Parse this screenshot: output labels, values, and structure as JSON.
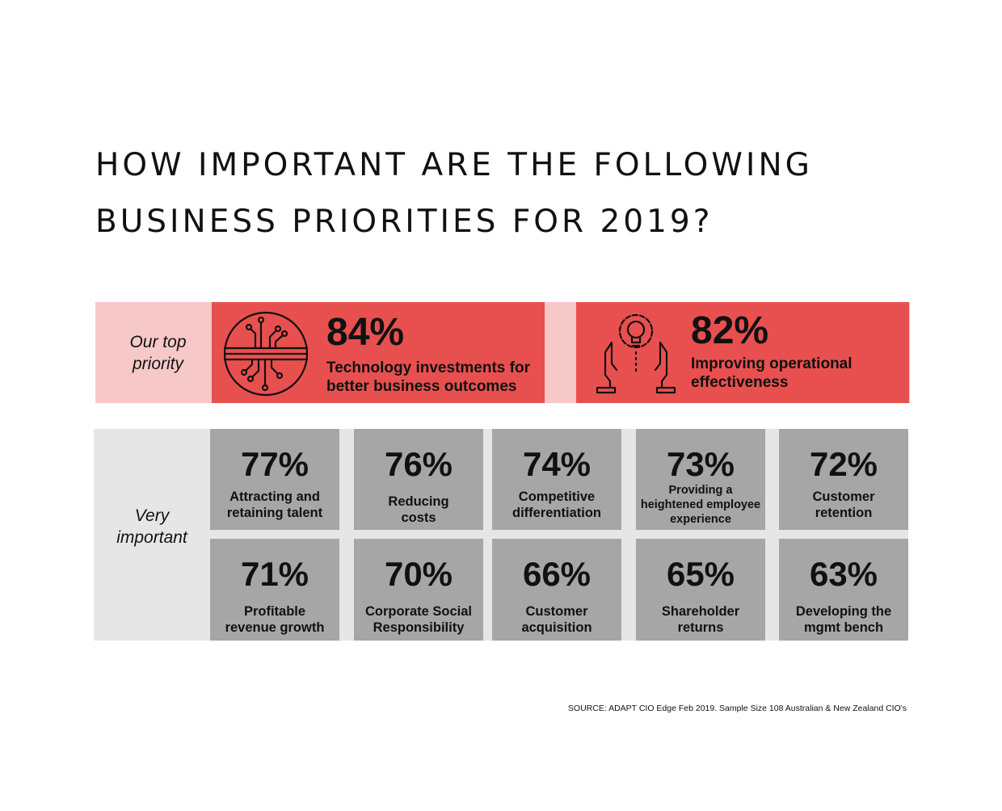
{
  "title": {
    "line1": "HOW IMPORTANT ARE THE FOLLOWING",
    "line2": "BUSINESS PRIORITIES FOR 2019?"
  },
  "top_priority": {
    "label_line1": "Our top",
    "label_line2": "priority",
    "items": [
      {
        "pct": "84%",
        "label_line1": "Technology investments for",
        "label_line2": "better business outcomes",
        "icon": "circuit-icon"
      },
      {
        "pct": "82%",
        "label_line1": "Improving operational",
        "label_line2": "effectiveness",
        "icon": "hands-lightbulb-gear-icon"
      }
    ]
  },
  "very_important": {
    "label_line1": "Very",
    "label_line2": "important",
    "items": [
      {
        "pct": "77%",
        "lines": [
          "Attracting and",
          "retaining talent"
        ]
      },
      {
        "pct": "76%",
        "lines": [
          "Reducing",
          "costs"
        ]
      },
      {
        "pct": "74%",
        "lines": [
          "Competitive",
          "differentiation"
        ]
      },
      {
        "pct": "73%",
        "lines": [
          "Providing a",
          "heightened employee",
          "experience"
        ]
      },
      {
        "pct": "72%",
        "lines": [
          "Customer",
          "retention"
        ]
      },
      {
        "pct": "71%",
        "lines": [
          "Profitable",
          "revenue growth"
        ]
      },
      {
        "pct": "70%",
        "lines": [
          "Corporate Social",
          "Responsibility"
        ]
      },
      {
        "pct": "66%",
        "lines": [
          "Customer",
          "acquisition"
        ]
      },
      {
        "pct": "65%",
        "lines": [
          "Shareholder",
          "returns"
        ]
      },
      {
        "pct": "63%",
        "lines": [
          "Developing the",
          "mgmt bench"
        ]
      }
    ]
  },
  "source": "SOURCE: ADAPT CIO Edge Feb 2019. Sample Size 108 Australian & New Zealand CIO's",
  "colors": {
    "top_band": "#f7c8c8",
    "top_card": "#e8504f",
    "vi_band": "#e6e6e6",
    "vi_cell": "#a6a6a6"
  },
  "chart_data": {
    "type": "table",
    "title": "HOW IMPORTANT ARE THE FOLLOWING BUSINESS PRIORITIES FOR 2019?",
    "categories": [
      "Technology investments for better business outcomes",
      "Improving operational effectiveness",
      "Attracting and retaining talent",
      "Reducing costs",
      "Competitive differentiation",
      "Providing a heightened employee experience",
      "Customer retention",
      "Profitable revenue growth",
      "Corporate Social Responsibility",
      "Customer acquisition",
      "Shareholder returns",
      "Developing the mgmt bench"
    ],
    "values": [
      84,
      82,
      77,
      76,
      74,
      73,
      72,
      71,
      70,
      66,
      65,
      63
    ],
    "groups": [
      "Our top priority",
      "Our top priority",
      "Very important",
      "Very important",
      "Very important",
      "Very important",
      "Very important",
      "Very important",
      "Very important",
      "Very important",
      "Very important",
      "Very important"
    ]
  }
}
